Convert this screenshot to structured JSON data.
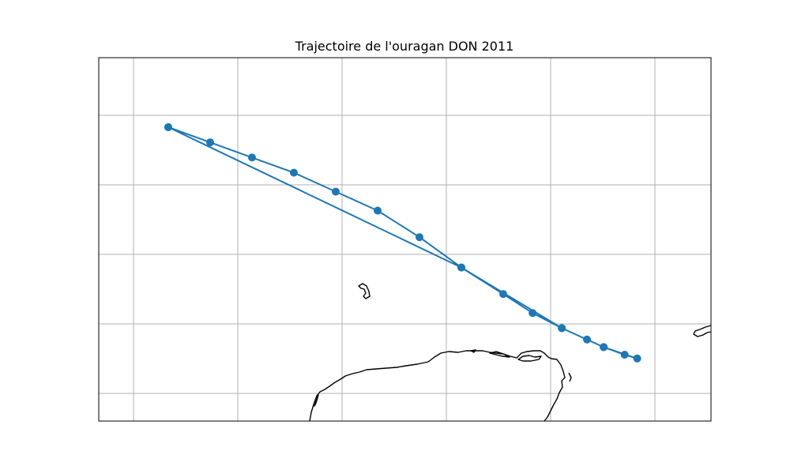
{
  "figure": {
    "title": "Trajectoire de l'ouragan DON 2011"
  },
  "colors": {
    "track": "#1f77b4",
    "grid": "#b0b0b0",
    "coastline": "#000000",
    "background": "#ffffff"
  },
  "chart_data": {
    "type": "map-track",
    "title": "Trajectoire de l'ouragan DON 2011",
    "series": [
      {
        "marker": "circle",
        "points": [
          [
            -87.0,
            25.0
          ],
          [
            -86.0,
            24.6
          ],
          [
            -85.0,
            24.2
          ],
          [
            -84.0,
            23.8
          ],
          [
            -83.0,
            23.3
          ],
          [
            -82.0,
            22.8
          ],
          [
            -81.0,
            22.1
          ],
          [
            -80.0,
            21.3
          ],
          [
            -79.0,
            20.6
          ],
          [
            -78.3,
            20.1
          ],
          [
            -77.6,
            19.7
          ],
          [
            -77.0,
            19.4
          ],
          [
            -76.6,
            19.2
          ],
          [
            -76.1,
            19.0
          ],
          [
            -75.8,
            18.9
          ],
          [
            -76.6,
            19.2
          ],
          [
            -77.6,
            19.7
          ],
          [
            -80.0,
            21.3
          ],
          [
            -87.0,
            25.0
          ]
        ]
      }
    ],
    "gridlines": true
  }
}
